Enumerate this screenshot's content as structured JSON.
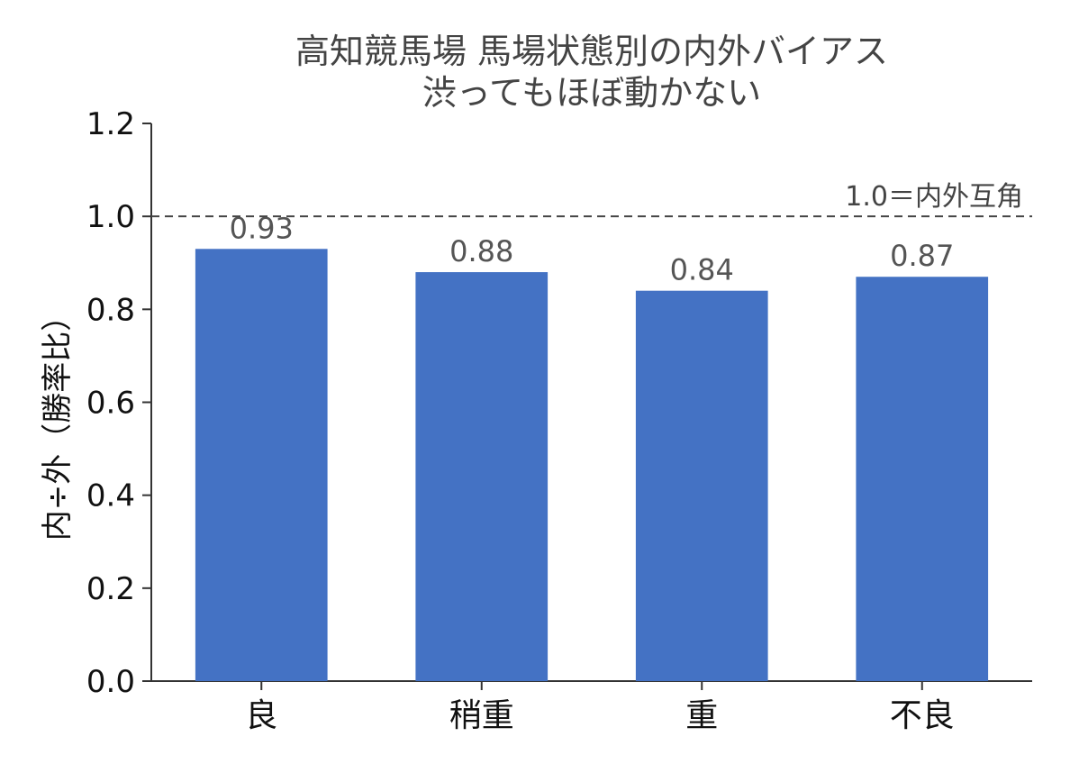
{
  "chart_data": {
    "type": "bar",
    "title": "高知競馬場 馬場状態別の内外バイアス",
    "subtitle": "渋ってもほぼ動かない",
    "xlabel": "",
    "ylabel": "内÷外（勝率比）",
    "categories": [
      "良",
      "稍重",
      "重",
      "不良"
    ],
    "values": [
      0.93,
      0.88,
      0.84,
      0.87
    ],
    "data_labels": [
      "0.93",
      "0.88",
      "0.84",
      "0.87"
    ],
    "ylim": [
      0,
      1.2
    ],
    "yticks": [
      0.0,
      0.2,
      0.4,
      0.6,
      0.8,
      1.0,
      1.2
    ],
    "ytick_labels": [
      "0.0",
      "0.2",
      "0.4",
      "0.6",
      "0.8",
      "1.0",
      "1.2"
    ],
    "reference_line": {
      "value": 1.0,
      "label": "1.0＝内外互角",
      "style": "dashed"
    },
    "bar_color": "#4472C4",
    "grid": false,
    "legend": "none"
  }
}
